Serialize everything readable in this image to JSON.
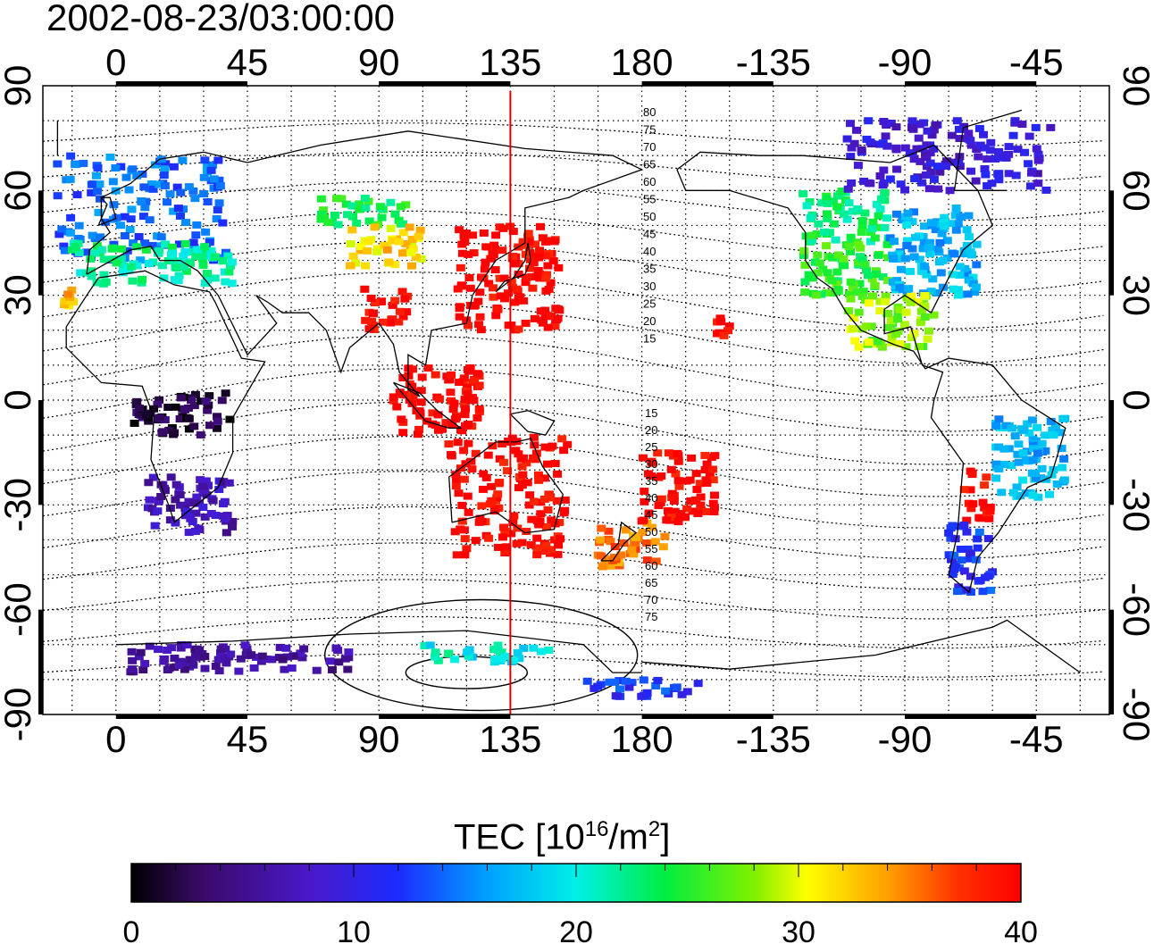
{
  "title": "2002-08-23/03:00:00",
  "colorbar": {
    "label_prefix": "TEC  [10",
    "label_exp1": "16",
    "label_mid": "/m",
    "label_exp2": "2",
    "label_suffix": "]",
    "ticks": [
      "0",
      "10",
      "20",
      "30",
      "40"
    ],
    "range": [
      0,
      40
    ]
  },
  "map": {
    "lon_ticks_top": [
      "0",
      "45",
      "90",
      "135",
      "180",
      "-135",
      "-90",
      "-45"
    ],
    "lon_ticks_bottom": [
      "0",
      "45",
      "90",
      "135",
      "180",
      "-135",
      "-90",
      "-45"
    ],
    "lat_ticks_left": [
      "90",
      "60",
      "30",
      "0",
      "-30",
      "-60",
      "-90"
    ],
    "lat_ticks_right": [
      "90",
      "60",
      "30",
      "0",
      "-30",
      "-60",
      "-90"
    ],
    "lon_range": [
      -25,
      340
    ],
    "lat_range": [
      -90,
      90
    ],
    "marker_longitude": 135,
    "marker_color": "#dd0000",
    "grid": "dotted",
    "contour_labels_north": [
      "80",
      "75",
      "70",
      "65",
      "60",
      "55",
      "50",
      "45",
      "40",
      "35",
      "30",
      "25",
      "20",
      "15"
    ],
    "contour_labels_south": [
      "15",
      "20",
      "25",
      "30",
      "35",
      "40",
      "45",
      "50",
      "55",
      "60",
      "65",
      "70",
      "75"
    ]
  },
  "chart_data": {
    "type": "heatmap",
    "x_unit": "longitude (deg)",
    "y_unit": "latitude (deg)",
    "value_unit": "TEC [10^16/m^2]",
    "regions": [
      {
        "lon": [
          -20,
          38
        ],
        "lat": [
          40,
          70
        ],
        "tec": 14
      },
      {
        "lon": [
          -15,
          40
        ],
        "lat": [
          33,
          45
        ],
        "tec": 22
      },
      {
        "lon": [
          -18,
          -14
        ],
        "lat": [
          27,
          33
        ],
        "tec": 33
      },
      {
        "lon": [
          70,
          100
        ],
        "lat": [
          50,
          58
        ],
        "tec": 24
      },
      {
        "lon": [
          80,
          105
        ],
        "lat": [
          38,
          50
        ],
        "tec": 32
      },
      {
        "lon": [
          117,
          152
        ],
        "lat": [
          20,
          50
        ],
        "tec": 40
      },
      {
        "lon": [
          85,
          100
        ],
        "lat": [
          20,
          32
        ],
        "tec": 40
      },
      {
        "lon": [
          95,
          125
        ],
        "lat": [
          -10,
          10
        ],
        "tec": 40
      },
      {
        "lon": [
          113,
          155
        ],
        "lat": [
          -45,
          -10
        ],
        "tec": 40
      },
      {
        "lon": [
          165,
          188
        ],
        "lat": [
          -48,
          -35
        ],
        "tec": 35
      },
      {
        "lon": [
          10,
          40
        ],
        "lat": [
          -38,
          -22
        ],
        "tec": 7
      },
      {
        "lon": [
          5,
          40
        ],
        "lat": [
          -10,
          2
        ],
        "tec": 2
      },
      {
        "lon": [
          -125,
          -95
        ],
        "lat": [
          45,
          60
        ],
        "tec": 23
      },
      {
        "lon": [
          -125,
          -95
        ],
        "lat": [
          30,
          45
        ],
        "tec": 25
      },
      {
        "lon": [
          -95,
          -65
        ],
        "lat": [
          30,
          55
        ],
        "tec": 17
      },
      {
        "lon": [
          -110,
          -80
        ],
        "lat": [
          15,
          30
        ],
        "tec": 28
      },
      {
        "lon": [
          -110,
          -40
        ],
        "lat": [
          60,
          80
        ],
        "tec": 9
      },
      {
        "lon": [
          -70,
          -60
        ],
        "lat": [
          -35,
          -20
        ],
        "tec": 40
      },
      {
        "lon": [
          -75,
          -60
        ],
        "lat": [
          -55,
          -35
        ],
        "tec": 12
      },
      {
        "lon": [
          -60,
          -35
        ],
        "lat": [
          -28,
          -5
        ],
        "tec": 17
      },
      {
        "lon": [
          -155,
          -150
        ],
        "lat": [
          18,
          25
        ],
        "tec": 40
      },
      {
        "lon": [
          180,
          205
        ],
        "lat": [
          -35,
          -15
        ],
        "tec": 40
      },
      {
        "lon": [
          105,
          150
        ],
        "lat": [
          -75,
          -70
        ],
        "tec": 20
      },
      {
        "lon": [
          5,
          80
        ],
        "lat": [
          -78,
          -70
        ],
        "tec": 6
      },
      {
        "lon": [
          160,
          200
        ],
        "lat": [
          -85,
          -80
        ],
        "tec": 12
      }
    ]
  }
}
